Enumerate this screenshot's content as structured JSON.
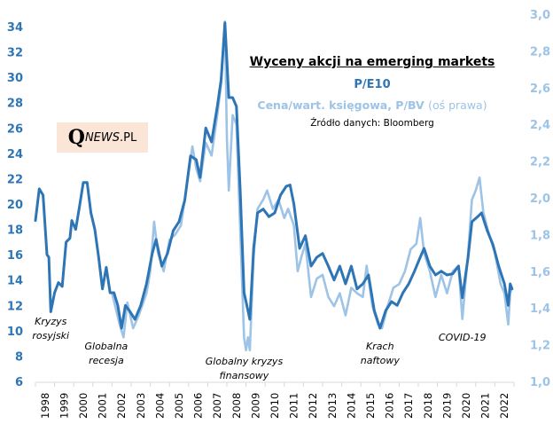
{
  "chart_data": {
    "type": "line",
    "title": "Wyceny akcji na emerging markets",
    "subtitle_series_1": "P/E10",
    "subtitle_series_2": "Cena/wart. księgowa, P/BV",
    "subtitle_series_2_note": "(oś prawa)",
    "source": "Źródło danych: Bloomberg",
    "logo": {
      "q": "Q",
      "news": "NEWS",
      "dot_pl": ".PL"
    },
    "xlabel": "",
    "ylabel_left": "",
    "ylabel_right": "",
    "x_range": [
      1998,
      2023
    ],
    "x_ticks": [
      "1998",
      "1999",
      "2000",
      "2001",
      "2002",
      "2003",
      "2004",
      "2005",
      "2006",
      "2007",
      "2008",
      "2009",
      "2010",
      "2011",
      "2012",
      "2013",
      "2014",
      "2015",
      "2016",
      "2017",
      "2018",
      "2019",
      "2020",
      "2021",
      "2022"
    ],
    "y_left": {
      "range": [
        6,
        34
      ],
      "ticks": [
        "6",
        "8",
        "10",
        "12",
        "14",
        "16",
        "18",
        "20",
        "22",
        "24",
        "26",
        "28",
        "30",
        "32",
        "34"
      ]
    },
    "y_right": {
      "range": [
        1.0,
        3.0
      ],
      "ticks": [
        "1,0",
        "1,2",
        "1,4",
        "1,6",
        "1,8",
        "2,0",
        "2,2",
        "2,4",
        "2,6",
        "2,8",
        "3,0"
      ]
    },
    "grid": false,
    "legend": "none (series named in title block, top-right)",
    "colors": {
      "pe10": "#2E75B6",
      "pbv": "#9DC3E6",
      "logo_bg": "#FBE5D6"
    },
    "annotations": [
      {
        "lines": [
          "Kryzys",
          "rosyjski"
        ],
        "x": 1998.8
      },
      {
        "lines": [
          "Globalna",
          "recesja"
        ],
        "x": 2001.7
      },
      {
        "lines": [
          "Globalny kryzys",
          "finansowy"
        ],
        "x": 2008.9
      },
      {
        "lines": [
          "Krach",
          "naftowy"
        ],
        "x": 2016.0
      },
      {
        "lines": [
          "COVID-19"
        ],
        "x": 2020.3
      }
    ],
    "series": [
      {
        "name": "P/E10",
        "axis": "left",
        "x": [
          1998.0,
          1998.2,
          1998.4,
          1998.6,
          1998.7,
          1998.8,
          1999.0,
          1999.2,
          1999.4,
          1999.6,
          1999.8,
          1999.9,
          2000.1,
          2000.3,
          2000.5,
          2000.7,
          2000.9,
          2001.1,
          2001.3,
          2001.5,
          2001.7,
          2001.9,
          2002.1,
          2002.3,
          2002.5,
          2002.7,
          2002.9,
          2003.2,
          2003.5,
          2003.8,
          2004.1,
          2004.3,
          2004.6,
          2004.9,
          2005.2,
          2005.5,
          2005.8,
          2006.1,
          2006.4,
          2006.6,
          2006.9,
          2007.2,
          2007.5,
          2007.7,
          2007.9,
          2008.1,
          2008.3,
          2008.5,
          2008.7,
          2008.9,
          2009.0,
          2009.2,
          2009.4,
          2009.6,
          2009.9,
          2010.2,
          2010.5,
          2010.8,
          2011.1,
          2011.3,
          2011.5,
          2011.8,
          2012.1,
          2012.4,
          2012.7,
          2013.0,
          2013.3,
          2013.6,
          2013.9,
          2014.2,
          2014.5,
          2014.8,
          2015.1,
          2015.4,
          2015.7,
          2016.0,
          2016.3,
          2016.6,
          2016.9,
          2017.2,
          2017.5,
          2017.8,
          2018.1,
          2018.3,
          2018.6,
          2018.9,
          2019.2,
          2019.5,
          2019.8,
          2020.1,
          2020.3,
          2020.6,
          2020.8,
          2021.1,
          2021.3,
          2021.6,
          2021.9,
          2022.2,
          2022.5,
          2022.7,
          2022.8,
          2022.9
        ],
        "values": [
          18.7,
          21.2,
          20.7,
          16.0,
          15.8,
          11.5,
          13.0,
          13.8,
          13.5,
          17.0,
          17.3,
          18.7,
          18.0,
          19.8,
          21.7,
          21.7,
          19.3,
          18.0,
          15.8,
          13.3,
          15.0,
          13.0,
          13.0,
          12.0,
          10.2,
          12.0,
          11.6,
          10.9,
          12.0,
          13.7,
          16.1,
          17.2,
          15.1,
          16.1,
          17.9,
          18.6,
          20.3,
          23.8,
          23.5,
          22.1,
          26.0,
          24.9,
          27.7,
          29.8,
          34.3,
          28.4,
          28.4,
          27.7,
          21.0,
          13.0,
          12.3,
          10.9,
          16.5,
          19.3,
          19.6,
          19.0,
          19.3,
          20.7,
          21.4,
          21.5,
          20.0,
          16.5,
          17.5,
          15.1,
          15.8,
          16.1,
          15.1,
          14.0,
          15.1,
          13.7,
          15.1,
          13.3,
          13.7,
          14.4,
          11.6,
          10.2,
          11.6,
          12.3,
          12.0,
          13.0,
          13.7,
          14.7,
          15.8,
          16.5,
          15.1,
          14.4,
          14.7,
          14.4,
          14.5,
          15.1,
          12.6,
          15.8,
          18.6,
          19.0,
          19.3,
          17.9,
          16.8,
          15.1,
          13.7,
          12.0,
          13.7,
          13.3
        ]
      },
      {
        "name": "Cena/wart. księgowa, P/BV",
        "axis": "right",
        "x": [
          2002.0,
          2002.4,
          2002.6,
          2002.8,
          2003.1,
          2003.4,
          2003.8,
          2004.0,
          2004.2,
          2004.4,
          2004.7,
          2005.0,
          2005.3,
          2005.6,
          2005.9,
          2006.2,
          2006.4,
          2006.6,
          2006.9,
          2007.2,
          2007.5,
          2007.7,
          2007.9,
          2008.0,
          2008.1,
          2008.3,
          2008.5,
          2008.7,
          2008.9,
          2009.0,
          2009.1,
          2009.2,
          2009.4,
          2009.6,
          2009.9,
          2010.1,
          2010.4,
          2010.7,
          2011.0,
          2011.2,
          2011.5,
          2011.7,
          2011.9,
          2012.1,
          2012.4,
          2012.7,
          2013.0,
          2013.3,
          2013.6,
          2013.9,
          2014.2,
          2014.5,
          2014.8,
          2015.1,
          2015.3,
          2015.6,
          2015.9,
          2016.1,
          2016.4,
          2016.7,
          2017.0,
          2017.3,
          2017.6,
          2017.9,
          2018.1,
          2018.3,
          2018.6,
          2018.9,
          2019.2,
          2019.5,
          2019.8,
          2020.1,
          2020.3,
          2020.6,
          2020.8,
          2021.0,
          2021.2,
          2021.4,
          2021.7,
          2022.0,
          2022.3,
          2022.5,
          2022.7,
          2022.8,
          2022.9
        ],
        "values": [
          1.48,
          1.31,
          1.24,
          1.43,
          1.29,
          1.36,
          1.48,
          1.6,
          1.87,
          1.7,
          1.6,
          1.77,
          1.8,
          1.85,
          2.06,
          2.28,
          2.16,
          2.09,
          2.3,
          2.23,
          2.45,
          2.62,
          2.96,
          2.33,
          2.04,
          2.45,
          2.4,
          1.82,
          1.24,
          1.17,
          1.24,
          1.17,
          1.68,
          1.94,
          1.99,
          2.04,
          1.94,
          1.99,
          1.89,
          1.94,
          1.85,
          1.6,
          1.68,
          1.75,
          1.46,
          1.56,
          1.58,
          1.46,
          1.41,
          1.48,
          1.36,
          1.51,
          1.48,
          1.46,
          1.63,
          1.41,
          1.31,
          1.29,
          1.41,
          1.51,
          1.53,
          1.6,
          1.72,
          1.75,
          1.89,
          1.7,
          1.6,
          1.46,
          1.58,
          1.48,
          1.6,
          1.63,
          1.34,
          1.7,
          1.99,
          2.04,
          2.11,
          1.92,
          1.8,
          1.7,
          1.53,
          1.48,
          1.31,
          1.48,
          1.51
        ]
      }
    ]
  }
}
